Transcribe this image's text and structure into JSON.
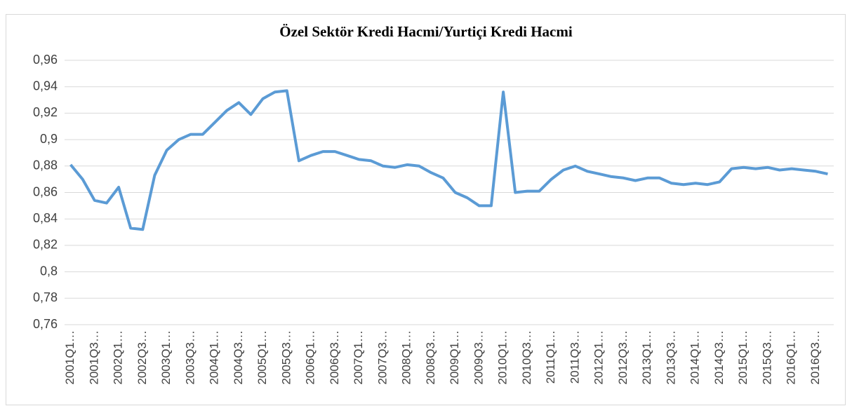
{
  "chart_data": {
    "type": "line",
    "title": "Özel Sektör Kredi Hacmi/Yurtiçi Kredi Hacmi",
    "categories": [
      "2001Q1…",
      null,
      "2001Q3…",
      null,
      "2002Q1…",
      null,
      "2002Q3…",
      null,
      "2003Q1…",
      null,
      "2003Q3…",
      null,
      "2004Q1…",
      null,
      "2004Q3…",
      null,
      "2005Q1…",
      null,
      "2005Q3…",
      null,
      "2006Q1…",
      null,
      "2006Q3…",
      null,
      "2007Q1…",
      null,
      "2007Q3…",
      null,
      "2008Q1…",
      null,
      "2008Q3…",
      null,
      "2009Q1…",
      null,
      "2009Q3…",
      null,
      "2010Q1…",
      null,
      "2010Q3…",
      null,
      "2011Q1…",
      null,
      "2011Q3…",
      null,
      "2012Q1…",
      null,
      "2012Q3…",
      null,
      "2013Q1…",
      null,
      "2013Q3…",
      null,
      "2014Q1…",
      null,
      "2014Q3…",
      null,
      "2015Q1…",
      null,
      "2015Q3…",
      null,
      "2016Q1…",
      null,
      "2016Q3…",
      null
    ],
    "series": [
      {
        "color": "#5b9bd5",
        "values": [
          0.881,
          0.87,
          0.854,
          0.852,
          0.864,
          0.833,
          0.832,
          0.873,
          0.892,
          0.9,
          0.904,
          0.904,
          0.913,
          0.922,
          0.928,
          0.919,
          0.931,
          0.936,
          0.937,
          0.884,
          0.888,
          0.891,
          0.891,
          0.888,
          0.885,
          0.884,
          0.88,
          0.879,
          0.881,
          0.88,
          0.875,
          0.871,
          0.86,
          0.856,
          0.85,
          0.85,
          0.936,
          0.86,
          0.861,
          0.861,
          0.87,
          0.877,
          0.88,
          0.876,
          0.874,
          0.872,
          0.871,
          0.869,
          0.871,
          0.871,
          0.867,
          0.866,
          0.867,
          0.866,
          0.868,
          0.878,
          0.879,
          0.878,
          0.879,
          0.877,
          0.878,
          0.877,
          0.876,
          0.874
        ]
      }
    ],
    "ylim": [
      0.76,
      0.96
    ],
    "yticks": [
      {
        "value": 0.76,
        "label": "0,76"
      },
      {
        "value": 0.78,
        "label": "0,78"
      },
      {
        "value": 0.8,
        "label": "0,8"
      },
      {
        "value": 0.82,
        "label": "0,82"
      },
      {
        "value": 0.84,
        "label": "0,84"
      },
      {
        "value": 0.86,
        "label": "0,86"
      },
      {
        "value": 0.88,
        "label": "0,88"
      },
      {
        "value": 0.9,
        "label": "0,9"
      },
      {
        "value": 0.92,
        "label": "0,92"
      },
      {
        "value": 0.94,
        "label": "0,94"
      },
      {
        "value": 0.96,
        "label": "0,96"
      }
    ],
    "grid": true
  }
}
